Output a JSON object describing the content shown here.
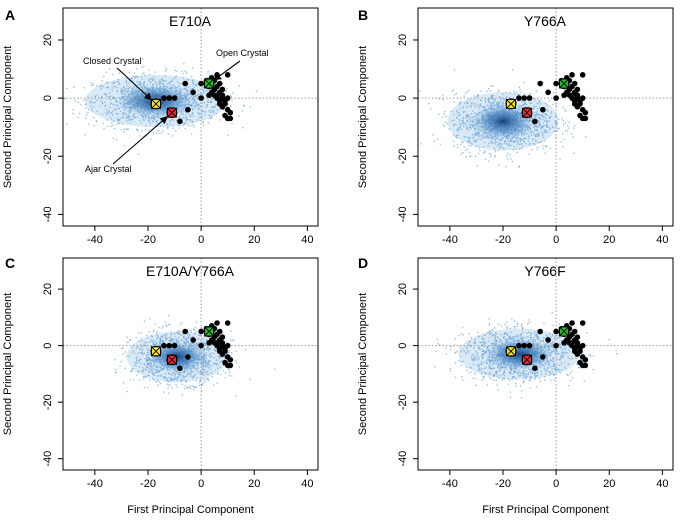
{
  "chart_data": {
    "type": "scatter",
    "xlabel": "First Principal Component",
    "ylabel": "Second Principal Component",
    "xlim": [
      -52,
      44
    ],
    "ylim": [
      -44,
      31
    ],
    "xticks": [
      -40,
      -20,
      0,
      20,
      40
    ],
    "yticks": [
      -40,
      -20,
      0,
      20
    ],
    "x_tick_labels": [
      "-40",
      "-20",
      "0",
      "20",
      "40"
    ],
    "y_tick_labels": [
      "-40",
      "-20",
      "0",
      "20"
    ],
    "reference_lines": {
      "x": 0,
      "y": 0
    },
    "crystal_markers": [
      {
        "name": "Closed Crystal",
        "x": -17,
        "y": -2,
        "color": "#f2e22b"
      },
      {
        "name": "Ajar Crystal",
        "x": -11,
        "y": -5,
        "color": "#e0303c"
      },
      {
        "name": "Open Crystal",
        "x": 3,
        "y": 5,
        "color": "#32b432"
      }
    ],
    "crystal_points": [
      [
        0,
        5
      ],
      [
        2,
        6
      ],
      [
        3,
        4
      ],
      [
        4,
        7
      ],
      [
        5,
        3
      ],
      [
        5,
        6
      ],
      [
        6,
        1
      ],
      [
        6,
        4
      ],
      [
        7,
        2
      ],
      [
        7,
        5
      ],
      [
        7,
        -1
      ],
      [
        8,
        0
      ],
      [
        8,
        3
      ],
      [
        8,
        -3
      ],
      [
        9,
        -2
      ],
      [
        9,
        -6
      ],
      [
        10,
        -7
      ],
      [
        10,
        -4
      ],
      [
        11,
        -7
      ],
      [
        10,
        0
      ],
      [
        6,
        0
      ],
      [
        7,
        -2
      ],
      [
        4,
        2
      ],
      [
        6,
        8
      ],
      [
        10,
        8
      ],
      [
        5,
        1
      ],
      [
        8,
        1
      ],
      [
        9,
        -1
      ],
      [
        11,
        -5
      ],
      [
        3,
        1
      ],
      [
        -10,
        0
      ],
      [
        -12,
        0
      ],
      [
        -8,
        -8
      ],
      [
        -5,
        -4
      ],
      [
        -14,
        0
      ],
      [
        -6,
        5
      ],
      [
        -3,
        2
      ],
      [
        0,
        0
      ]
    ],
    "panels": [
      {
        "letter": "A",
        "title": "E710A",
        "density": {
          "cx": -17,
          "cy": -1,
          "sx": 14,
          "sy": 4.5
        },
        "annotations": [
          {
            "text": "Closed Crystal",
            "target": "Closed Crystal"
          },
          {
            "text": "Open Crystal",
            "target": "Open Crystal"
          },
          {
            "text": "Ajar Crystal",
            "target": "Ajar Crystal"
          }
        ]
      },
      {
        "letter": "B",
        "title": "Y766A",
        "density": {
          "cx": -20,
          "cy": -8,
          "sx": 11,
          "sy": 5
        },
        "annotations": []
      },
      {
        "letter": "C",
        "title": "E710A/Y766A",
        "density": {
          "cx": -9,
          "cy": -4,
          "sx": 10,
          "sy": 4.5
        },
        "annotations": []
      },
      {
        "letter": "D",
        "title": "Y766F",
        "density": {
          "cx": -14,
          "cy": -3,
          "sx": 12,
          "sy": 4.5
        },
        "annotations": []
      }
    ]
  }
}
